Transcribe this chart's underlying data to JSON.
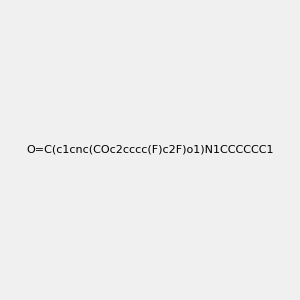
{
  "smiles": "O=C(c1cnc(COc2cccc(F)c2F)o1)N1CCCCCC1",
  "image_size": 300,
  "background_color": "#f0f0f0",
  "title": "",
  "atom_colors": {
    "N": "#0000ff",
    "O": "#ff0000",
    "F": "#ff00ff",
    "C": "#000000"
  }
}
